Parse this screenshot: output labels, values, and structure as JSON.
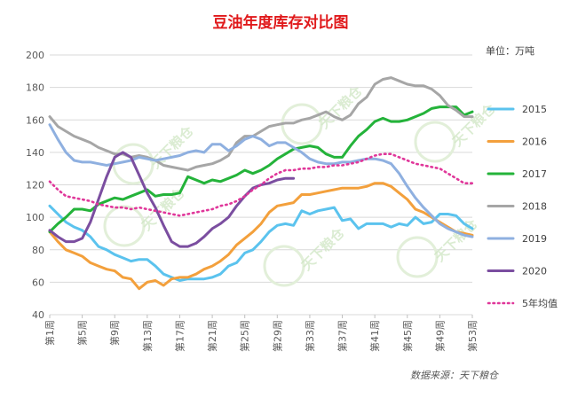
{
  "chart_data": {
    "type": "line",
    "title": "豆油年度库存对比图",
    "unit_label": "单位：万吨",
    "source_label": "数据来源：天下粮仓",
    "watermark_text": "天下粮仓",
    "ylim": [
      40,
      200
    ],
    "yticks": [
      40,
      60,
      80,
      100,
      120,
      140,
      160,
      180,
      200
    ],
    "weeks": 53,
    "xtick_labels": [
      "第1周",
      "第5周",
      "第9周",
      "第13周",
      "第17周",
      "第21周",
      "第25周",
      "第29周",
      "第33周",
      "第37周",
      "第41周",
      "第45周",
      "第49周",
      "第53周"
    ],
    "legend": {
      "position": "right"
    },
    "series": [
      {
        "name": "2015",
        "color": "#5bc3ee",
        "style": "solid",
        "values": [
          107,
          102,
          97,
          94,
          92,
          88,
          82,
          80,
          77,
          75,
          73,
          74,
          74,
          70,
          65,
          63,
          61,
          62,
          62,
          62,
          63,
          65,
          70,
          72,
          78,
          80,
          85,
          91,
          95,
          96,
          95,
          104,
          102,
          104,
          105,
          106,
          98,
          99,
          93,
          96,
          96,
          96,
          94,
          96,
          95,
          100,
          96,
          97,
          102,
          102,
          101,
          96,
          93
        ]
      },
      {
        "name": "2016",
        "color": "#f3a03c",
        "style": "solid",
        "values": [
          91,
          85,
          80,
          78,
          76,
          72,
          70,
          68,
          67,
          63,
          62,
          56,
          60,
          61,
          58,
          62,
          63,
          63,
          65,
          68,
          70,
          73,
          77,
          83,
          87,
          91,
          96,
          103,
          107,
          108,
          109,
          114,
          114,
          115,
          116,
          117,
          118,
          118,
          118,
          119,
          121,
          121,
          119,
          115,
          111,
          105,
          103,
          100,
          97,
          94,
          91,
          90,
          89
        ]
      },
      {
        "name": "2017",
        "color": "#24b33a",
        "style": "solid",
        "values": [
          91,
          96,
          100,
          105,
          105,
          104,
          108,
          110,
          112,
          111,
          113,
          115,
          117,
          113,
          114,
          114,
          115,
          125,
          123,
          121,
          123,
          122,
          124,
          126,
          129,
          127,
          129,
          132,
          136,
          139,
          142,
          143,
          144,
          143,
          139,
          137,
          137,
          144,
          150,
          154,
          159,
          161,
          159,
          159,
          160,
          162,
          164,
          167,
          168,
          168,
          168,
          163,
          165
        ]
      },
      {
        "name": "2018",
        "color": "#a6a6a6",
        "style": "solid",
        "values": [
          162,
          156,
          153,
          150,
          148,
          146,
          143,
          141,
          139,
          139,
          137,
          138,
          137,
          135,
          132,
          131,
          130,
          129,
          131,
          132,
          133,
          135,
          138,
          146,
          150,
          150,
          153,
          156,
          157,
          158,
          158,
          160,
          161,
          163,
          165,
          162,
          160,
          163,
          170,
          174,
          182,
          185,
          186,
          184,
          182,
          181,
          181,
          179,
          175,
          169,
          166,
          162,
          162
        ]
      },
      {
        "name": "2019",
        "color": "#8fb0e0",
        "style": "solid",
        "values": [
          157,
          148,
          140,
          135,
          134,
          134,
          133,
          132,
          133,
          134,
          135,
          137,
          136,
          135,
          136,
          137,
          138,
          140,
          141,
          140,
          145,
          145,
          141,
          144,
          148,
          150,
          148,
          144,
          146,
          146,
          143,
          140,
          136,
          134,
          133,
          133,
          134,
          134,
          135,
          136,
          136,
          135,
          133,
          127,
          119,
          112,
          106,
          101,
          96,
          93,
          91,
          89,
          88
        ]
      },
      {
        "name": "2020",
        "color": "#7b4ea0",
        "style": "solid",
        "values": [
          92,
          88,
          85,
          85,
          87,
          97,
          111,
          125,
          137,
          140,
          137,
          126,
          115,
          106,
          95,
          85,
          82,
          82,
          84,
          88,
          93,
          96,
          100,
          107,
          113,
          118,
          120,
          121,
          123,
          124,
          124
        ]
      },
      {
        "name": "5年均值",
        "color": "#e0379a",
        "style": "dotted",
        "values": [
          122,
          117,
          113,
          112,
          111,
          110,
          108,
          107,
          106,
          106,
          105,
          106,
          105,
          104,
          103,
          102,
          101,
          102,
          103,
          104,
          105,
          107,
          108,
          110,
          113,
          117,
          120,
          124,
          127,
          129,
          129,
          130,
          130,
          131,
          131,
          132,
          132,
          133,
          134,
          136,
          138,
          139,
          139,
          137,
          135,
          133,
          132,
          131,
          130,
          127,
          124,
          121,
          121
        ]
      }
    ]
  }
}
